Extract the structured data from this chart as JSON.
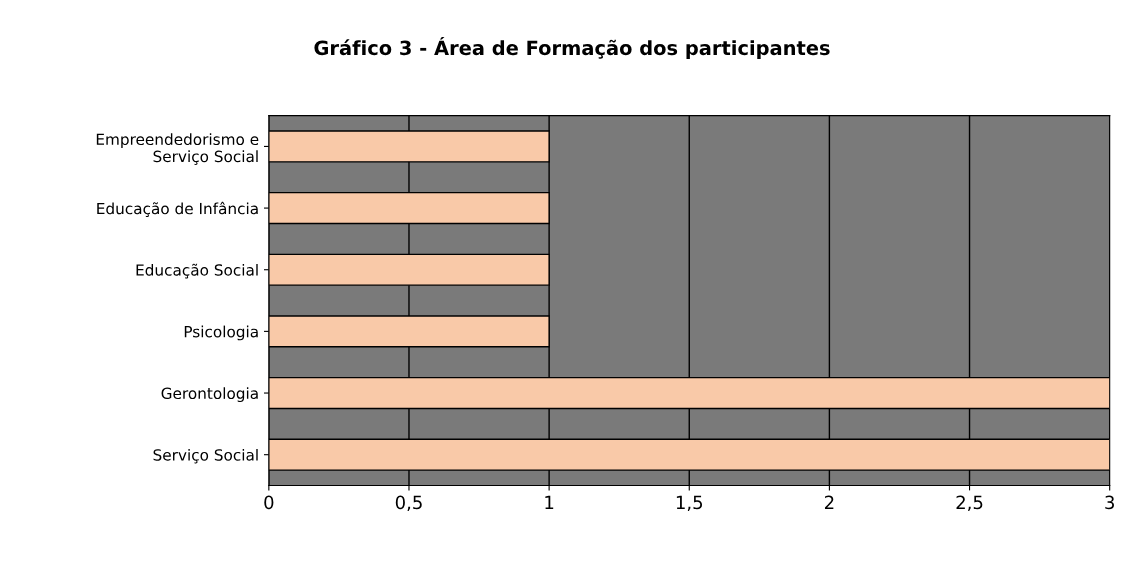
{
  "chart_data": {
    "type": "bar",
    "orientation": "horizontal",
    "title": "Gráfico 3 - Área de Formação dos participantes",
    "categories": [
      "Empreendedorismo e\nServiço Social",
      "Educação de Infância",
      "Educação Social",
      "Psicologia",
      "Gerontologia",
      "Serviço Social"
    ],
    "values": [
      1,
      1,
      1,
      1,
      3,
      3
    ],
    "color": "#f9c9a8",
    "xlim": [
      0,
      3
    ],
    "xticks": [
      0,
      {
        "value": 0.5,
        "label": "0,5"
      },
      1,
      {
        "value": 1.5,
        "label": "1,5"
      },
      2,
      {
        "value": 2.5,
        "label": "2,5"
      },
      3
    ],
    "grid": "x",
    "legend": false
  }
}
